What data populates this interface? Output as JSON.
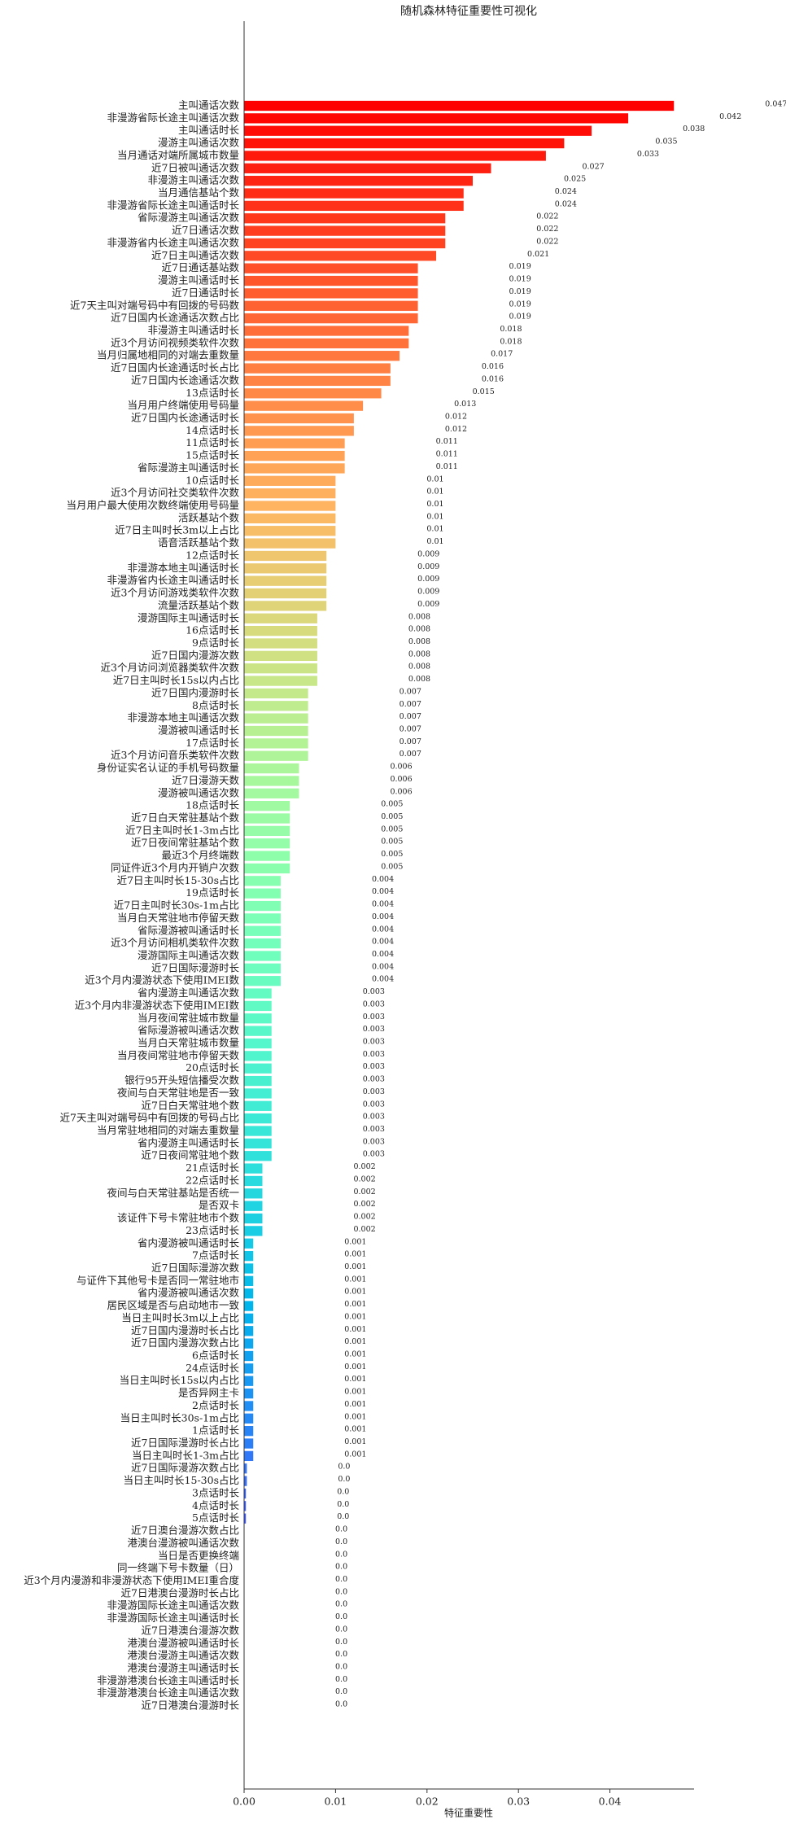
{
  "chart_data": {
    "type": "barh",
    "title": "随机森林特征重要性可视化",
    "xlabel": "特征重要性",
    "categories": [
      "主叫通话次数",
      "非漫游省际长途主叫通话次数",
      "主叫通话时长",
      "漫游主叫通话次数",
      "当月通话对端所属城市数量",
      "近7日被叫通话次数",
      "非漫游主叫通话次数",
      "当月通信基站个数",
      "非漫游省际长途主叫通话时长",
      "省际漫游主叫通话次数",
      "近7日通话次数",
      "非漫游省内长途主叫通话次数",
      "近7日主叫通话次数",
      "近7日通话基站数",
      "漫游主叫通话时长",
      "近7日通话时长",
      "近7天主叫对端号码中有回拨的号码数",
      "近7日国内长途通话次数占比",
      "非漫游主叫通话时长",
      "近3个月访问视频类软件次数",
      "当月归属地相同的对端去重数量",
      "近7日国内长途通话时长占比",
      "近7日国内长途通话次数",
      "13点话时长",
      "当月用户终端使用号码量",
      "近7日国内长途通话时长",
      "14点话时长",
      "11点话时长",
      "15点话时长",
      "省际漫游主叫通话时长",
      "10点话时长",
      "近3个月访问社交类软件次数",
      "当月用户最大使用次数终端使用号码量",
      "活跃基站个数",
      "近7日主叫时长3m以上占比",
      "语音活跃基站个数",
      "12点话时长",
      "非漫游本地主叫通话时长",
      "非漫游省内长途主叫通话时长",
      "近3个月访问游戏类软件次数",
      "流量活跃基站个数",
      "漫游国际主叫通话时长",
      "16点话时长",
      "9点话时长",
      "近7日国内漫游次数",
      "近3个月访问浏览器类软件次数",
      "近7日主叫时长15s以内占比",
      "近7日国内漫游时长",
      "8点话时长",
      "非漫游本地主叫通话次数",
      "漫游被叫通话时长",
      "17点话时长",
      "近3个月访问音乐类软件次数",
      "身份证实名认证的手机号码数量",
      "近7日漫游天数",
      "漫游被叫通话次数",
      "18点话时长",
      "近7日白天常驻基站个数",
      "近7日主叫时长1-3m占比",
      "近7日夜间常驻基站个数",
      "最近3个月终端数",
      "同证件近3个月内开销户次数",
      "近7日主叫时长15-30s占比",
      "19点话时长",
      "近7日主叫时长30s-1m占比",
      "当月白天常驻地市停留天数",
      "省际漫游被叫通话时长",
      "近3个月访问相机类软件次数",
      "漫游国际主叫通话次数",
      "近7日国际漫游时长",
      "近3个月内漫游状态下使用IMEI数",
      "省内漫游主叫通话次数",
      "近3个月内非漫游状态下使用IMEI数",
      "当月夜间常驻城市数量",
      "省际漫游被叫通话次数",
      "当月白天常驻城市数量",
      "当月夜间常驻地市停留天数",
      "20点话时长",
      "银行95开头短信播受次数",
      "夜间与白天常驻地是否一致",
      "近7日白天常驻地个数",
      "近7天主叫对端号码中有回拨的号码占比",
      "当月常驻地相同的对端去重数量",
      "省内漫游主叫通话时长",
      "近7日夜间常驻地个数",
      "21点话时长",
      "22点话时长",
      "夜间与白天常驻基站是否统一",
      "是否双卡",
      "该证件下号卡常驻地市个数",
      "23点话时长",
      "省内漫游被叫通话时长",
      "7点话时长",
      "近7日国际漫游次数",
      "与证件下其他号卡是否同一常驻地市",
      "省内漫游被叫通话次数",
      "居民区域是否与启动地市一致",
      "当日主叫时长3m以上占比",
      "近7日国内漫游时长占比",
      "近7日国内漫游次数占比",
      "6点话时长",
      "24点话时长",
      "当日主叫时长15s以内占比",
      "是否异网主卡",
      "2点话时长",
      "当日主叫时长30s-1m占比",
      "1点话时长",
      "近7日国际漫游时长占比",
      "当日主叫时长1-3m占比",
      "近7日国际漫游次数占比",
      "当日主叫时长15-30s占比",
      "3点话时长",
      "4点话时长",
      "5点话时长",
      "近7日澳台漫游次数占比",
      "港澳台漫游被叫通话次数",
      "当日是否更换终端",
      "同一终端下号卡数量（日）",
      "近3个月内漫游和非漫游状态下使用IMEI重合度",
      "近7日港澳台漫游时长占比",
      "非漫游国际长途主叫通话次数",
      "非漫游国际长途主叫通话时长",
      "近7日港澳台漫游次数",
      "港澳台漫游被叫通话时长",
      "港澳台漫游主叫通话次数",
      "港澳台漫游主叫通话时长",
      "非漫游港澳台长途主叫通话时长",
      "非漫游港澳台长途主叫通话次数",
      "近7日港澳台漫游时长"
    ],
    "values": [
      0.047,
      0.042,
      0.038,
      0.035,
      0.033,
      0.027,
      0.025,
      0.024,
      0.024,
      0.022,
      0.022,
      0.022,
      0.021,
      0.019,
      0.019,
      0.019,
      0.019,
      0.019,
      0.018,
      0.018,
      0.017,
      0.016,
      0.016,
      0.015,
      0.013,
      0.012,
      0.012,
      0.011,
      0.011,
      0.011,
      0.01,
      0.01,
      0.01,
      0.01,
      0.01,
      0.01,
      0.009,
      0.009,
      0.009,
      0.009,
      0.009,
      0.008,
      0.008,
      0.008,
      0.008,
      0.008,
      0.008,
      0.007,
      0.007,
      0.007,
      0.007,
      0.007,
      0.007,
      0.006,
      0.006,
      0.006,
      0.005,
      0.005,
      0.005,
      0.005,
      0.005,
      0.005,
      0.004,
      0.004,
      0.004,
      0.004,
      0.004,
      0.004,
      0.004,
      0.004,
      0.004,
      0.003,
      0.003,
      0.003,
      0.003,
      0.003,
      0.003,
      0.003,
      0.003,
      0.003,
      0.003,
      0.003,
      0.003,
      0.003,
      0.003,
      0.002,
      0.002,
      0.002,
      0.002,
      0.002,
      0.002,
      0.001,
      0.001,
      0.001,
      0.001,
      0.001,
      0.001,
      0.001,
      0.001,
      0.001,
      0.001,
      0.001,
      0.001,
      0.001,
      0.001,
      0.001,
      0.001,
      0.001,
      0.001,
      0.0003,
      0.0003,
      0.0002,
      0.0002,
      0.0002,
      0,
      0,
      0,
      0,
      0,
      0,
      0,
      0,
      0,
      0,
      0,
      0,
      0,
      0,
      0
    ],
    "value_labels": [
      "0.047",
      "0.042",
      "0.038",
      "0.035",
      "0.033",
      "0.027",
      "0.025",
      "0.024",
      "0.024",
      "0.022",
      "0.022",
      "0.022",
      "0.021",
      "0.019",
      "0.019",
      "0.019",
      "0.019",
      "0.019",
      "0.018",
      "0.018",
      "0.017",
      "0.016",
      "0.016",
      "0.015",
      "0.013",
      "0.012",
      "0.012",
      "0.011",
      "0.011",
      "0.011",
      "0.01",
      "0.01",
      "0.01",
      "0.01",
      "0.01",
      "0.01",
      "0.009",
      "0.009",
      "0.009",
      "0.009",
      "0.009",
      "0.008",
      "0.008",
      "0.008",
      "0.008",
      "0.008",
      "0.008",
      "0.007",
      "0.007",
      "0.007",
      "0.007",
      "0.007",
      "0.007",
      "0.006",
      "0.006",
      "0.006",
      "0.005",
      "0.005",
      "0.005",
      "0.005",
      "0.005",
      "0.005",
      "0.004",
      "0.004",
      "0.004",
      "0.004",
      "0.004",
      "0.004",
      "0.004",
      "0.004",
      "0.004",
      "0.003",
      "0.003",
      "0.003",
      "0.003",
      "0.003",
      "0.003",
      "0.003",
      "0.003",
      "0.003",
      "0.003",
      "0.003",
      "0.003",
      "0.003",
      "0.003",
      "0.002",
      "0.002",
      "0.002",
      "0.002",
      "0.002",
      "0.002",
      "0.001",
      "0.001",
      "0.001",
      "0.001",
      "0.001",
      "0.001",
      "0.001",
      "0.001",
      "0.001",
      "0.001",
      "0.001",
      "0.001",
      "0.001",
      "0.001",
      "0.001",
      "0.001",
      "0.001",
      "0.001",
      "0.0",
      "0.0",
      "0.0",
      "0.0",
      "0.0",
      "0.0",
      "0.0",
      "0.0",
      "0.0",
      "0.0",
      "0.0",
      "0.0",
      "0.0",
      "0.0",
      "0.0",
      "0.0",
      "0.0",
      "0.0",
      "0.0",
      "0.0"
    ],
    "colormap": "rainbow",
    "xlim": [
      0,
      0.0492
    ],
    "xticks": [
      {
        "value": 0,
        "label": "0.00"
      },
      0.01,
      0.02,
      0.03,
      0.04
    ]
  }
}
